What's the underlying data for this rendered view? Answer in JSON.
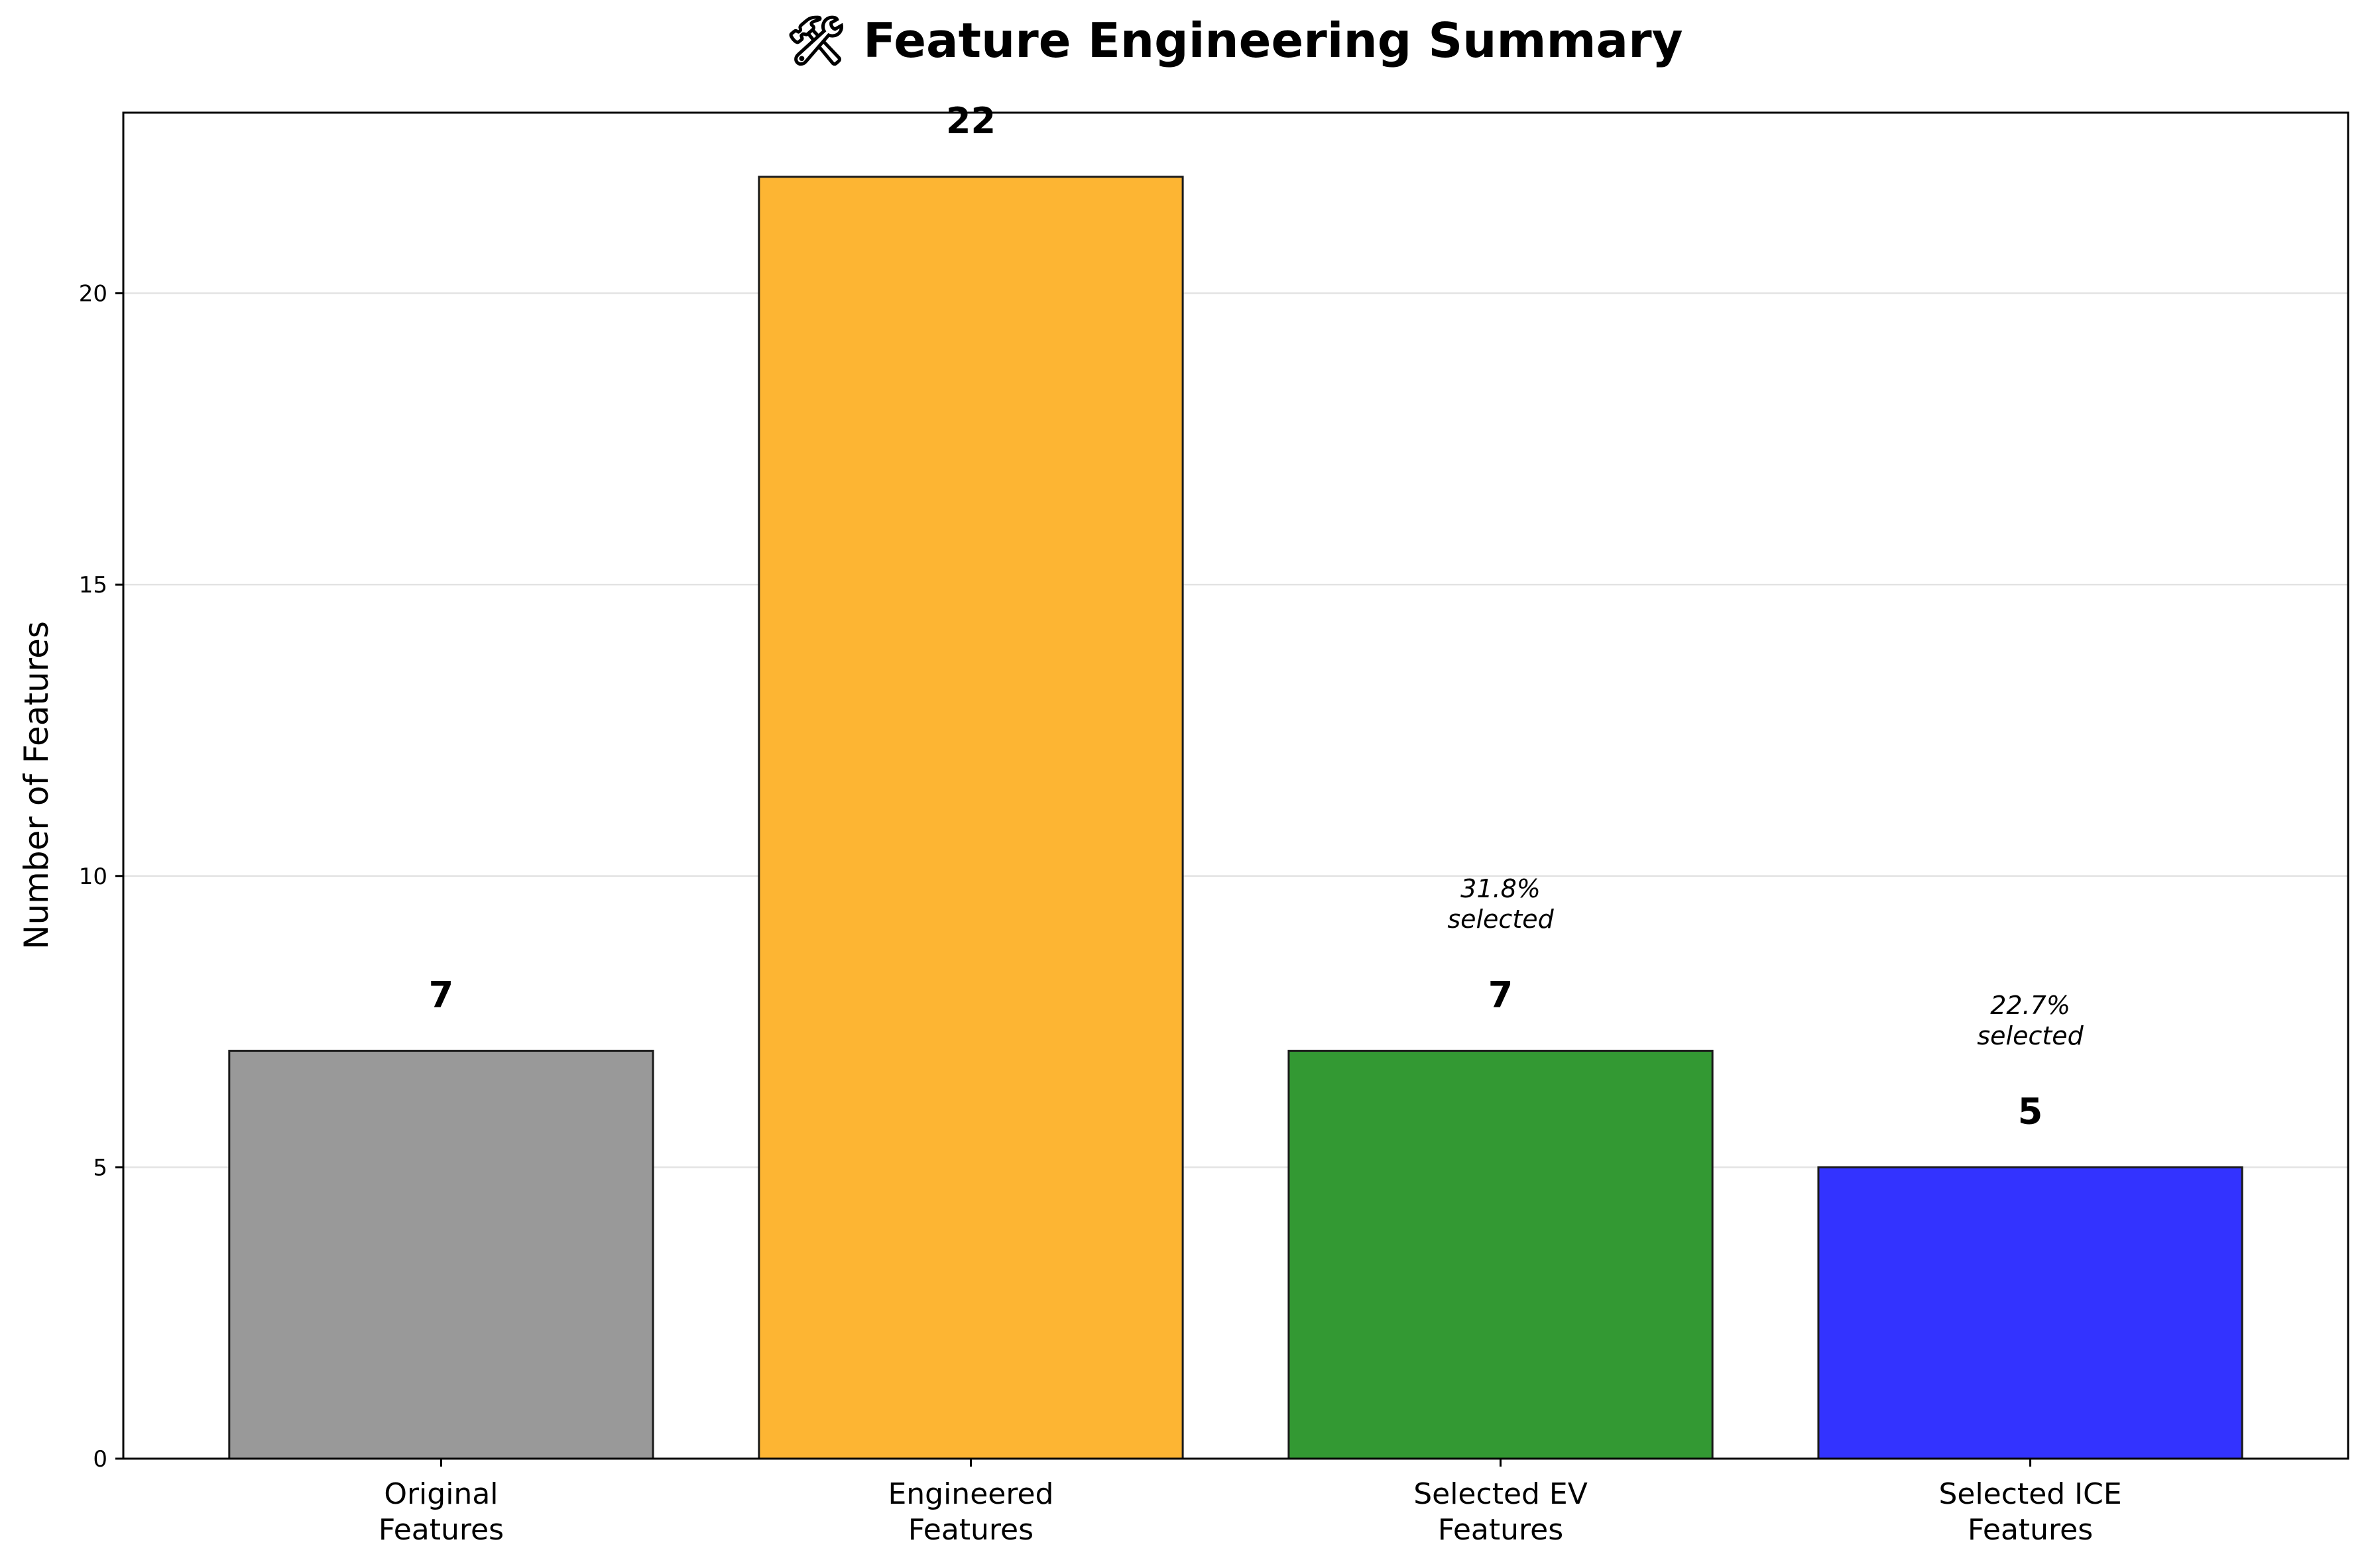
{
  "chart_data": {
    "type": "bar",
    "title": "🛠 Feature Engineering Summary",
    "title_icon": "wrench-icon",
    "xlabel": "",
    "ylabel": "Number of Features",
    "ylim": [
      0,
      23.1
    ],
    "yticks": [
      0,
      5,
      10,
      15,
      20
    ],
    "grid": "y",
    "categories": [
      [
        "Original",
        "Features"
      ],
      [
        "Engineered",
        "Features"
      ],
      [
        "Selected EV",
        "Features"
      ],
      [
        "Selected ICE",
        "Features"
      ]
    ],
    "values": [
      7,
      22,
      7,
      5
    ],
    "value_labels": [
      "7",
      "22",
      "7",
      "5"
    ],
    "colors": [
      "#999999",
      "#FDB533",
      "#339933",
      "#3333FF"
    ],
    "annotations": [
      {
        "bar": 2,
        "lines": [
          "31.8%",
          "selected"
        ]
      },
      {
        "bar": 3,
        "lines": [
          "22.7%",
          "selected"
        ]
      }
    ]
  }
}
